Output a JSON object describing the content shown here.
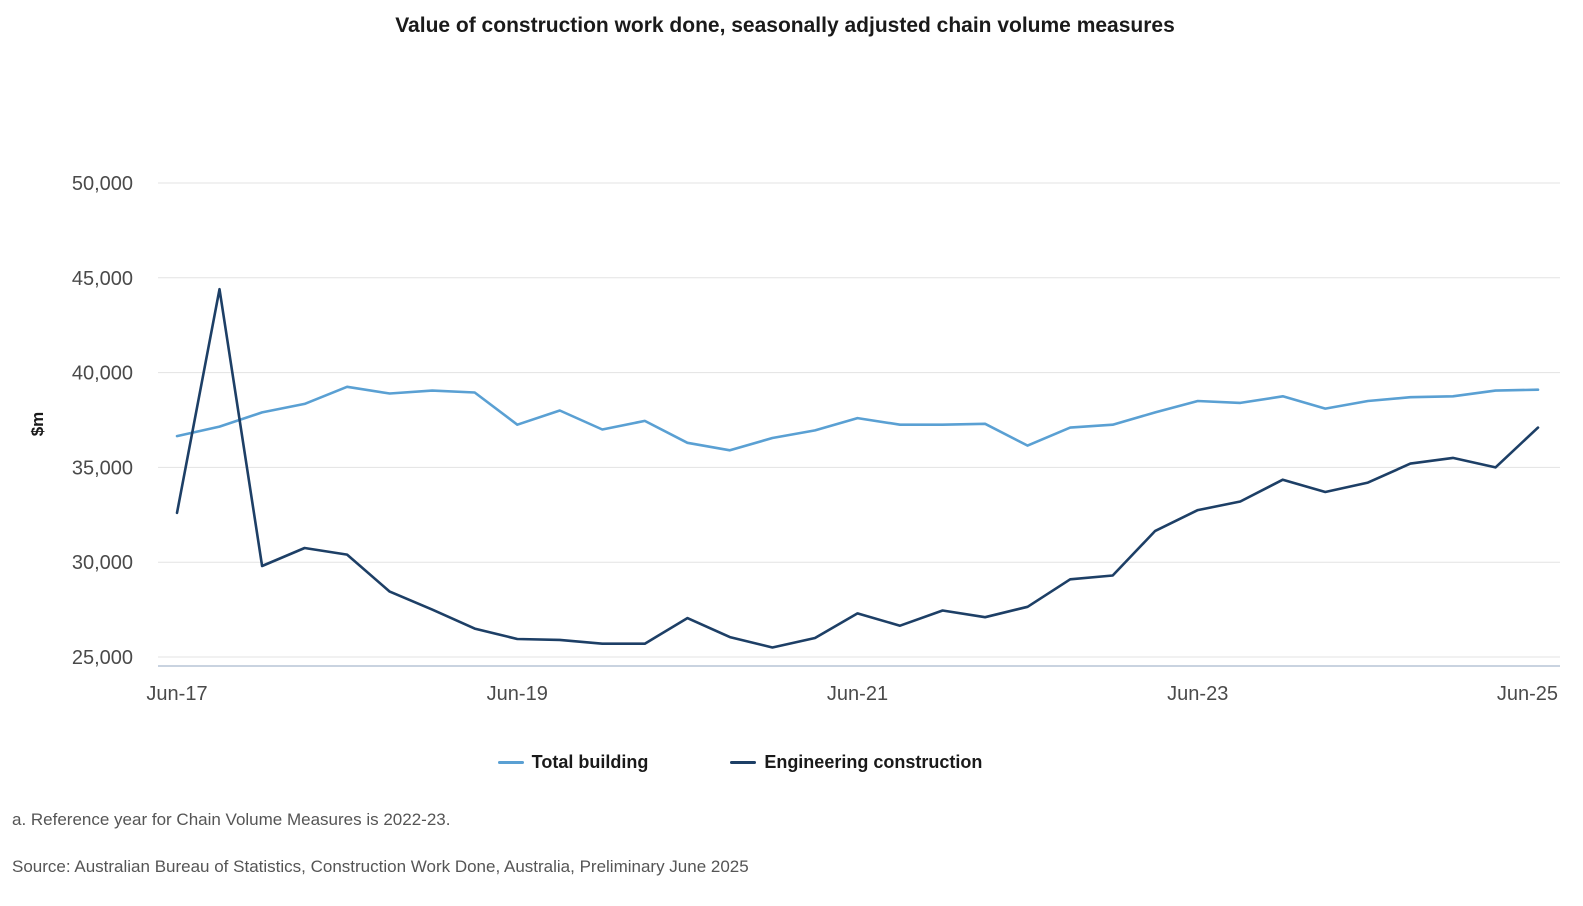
{
  "colors": {
    "total_building": "#5aa0d3",
    "engineering_construction": "#1d3f66"
  },
  "chart_data": {
    "type": "line",
    "title": "Value of construction work done, seasonally adjusted chain volume measures",
    "xlabel": "",
    "ylabel": "$m",
    "ylim": [
      25000,
      50000
    ],
    "yticks": [
      25000,
      30000,
      35000,
      40000,
      45000,
      50000
    ],
    "ytick_labels": [
      "25,000",
      "30,000",
      "35,000",
      "40,000",
      "45,000",
      "50,000"
    ],
    "x_tick_labels": [
      "Jun-17",
      "Jun-19",
      "Jun-21",
      "Jun-23",
      "Jun-25"
    ],
    "x_tick_indices": [
      0,
      8,
      16,
      24,
      32
    ],
    "x": [
      "Jun-17",
      "Sep-17",
      "Dec-17",
      "Mar-18",
      "Jun-18",
      "Sep-18",
      "Dec-18",
      "Mar-19",
      "Jun-19",
      "Sep-19",
      "Dec-19",
      "Mar-20",
      "Jun-20",
      "Sep-20",
      "Dec-20",
      "Mar-21",
      "Jun-21",
      "Sep-21",
      "Dec-21",
      "Mar-22",
      "Jun-22",
      "Sep-22",
      "Dec-22",
      "Mar-23",
      "Jun-23",
      "Sep-23",
      "Dec-23",
      "Mar-24",
      "Jun-24",
      "Sep-24",
      "Dec-24",
      "Mar-25",
      "Jun-25"
    ],
    "grid": true,
    "legend_position": "bottom",
    "series": [
      {
        "name": "Total building",
        "values": [
          36650,
          37150,
          37900,
          38350,
          39250,
          38900,
          39050,
          38950,
          37250,
          38000,
          37000,
          37450,
          36300,
          35900,
          36550,
          36950,
          37600,
          37250,
          37250,
          37300,
          36150,
          37100,
          37250,
          37900,
          38500,
          38400,
          38750,
          38100,
          38500,
          38700,
          38750,
          39050,
          39100
        ]
      },
      {
        "name": "Engineering construction",
        "values": [
          32600,
          44400,
          29800,
          30750,
          30400,
          28450,
          27500,
          26500,
          25950,
          25900,
          25700,
          25700,
          27050,
          26050,
          25500,
          26000,
          27300,
          26650,
          27450,
          27100,
          27650,
          29100,
          29300,
          31650,
          32750,
          33200,
          34350,
          33700,
          34200,
          35200,
          35500,
          35000,
          37100
        ]
      }
    ]
  },
  "footnotes": {
    "reference_year": "a. Reference year for Chain Volume Measures is 2022-23.",
    "source": "Source: Australian Bureau of Statistics, Construction Work Done, Australia, Preliminary June 2025"
  }
}
